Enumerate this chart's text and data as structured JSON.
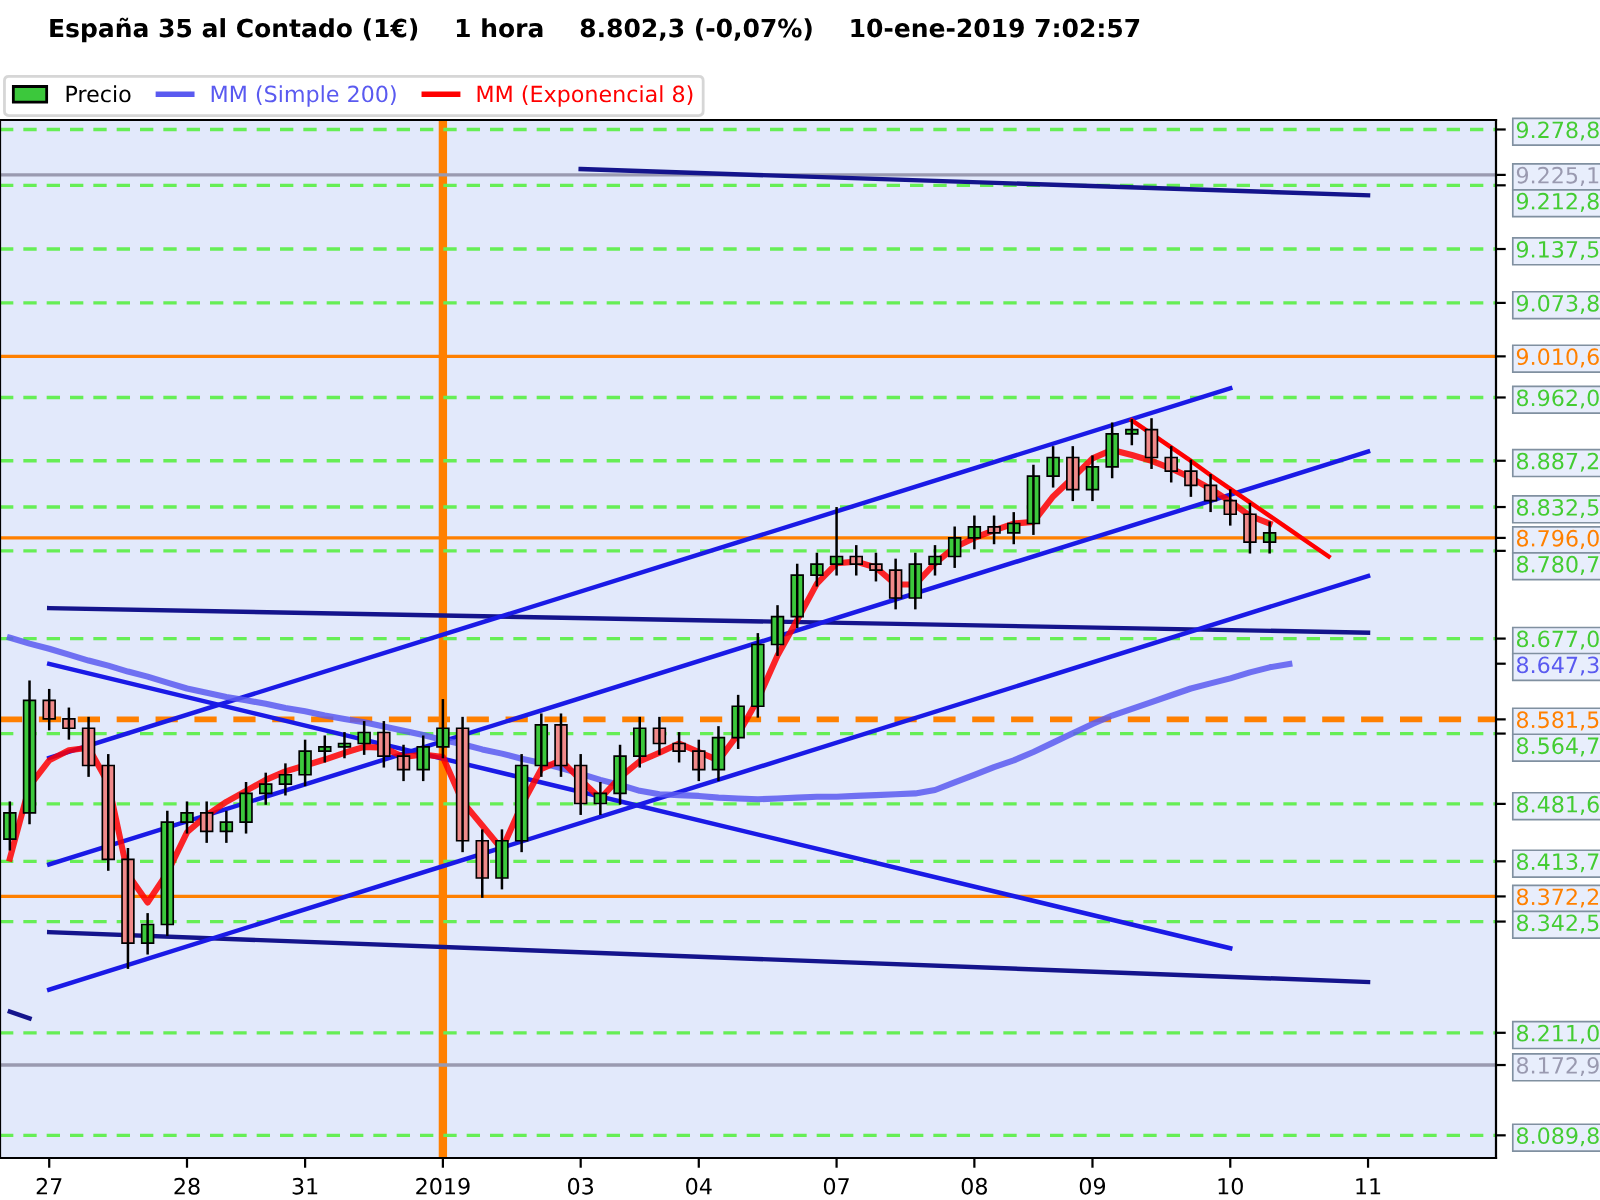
{
  "chart_data": {
    "type": "candlestick",
    "title": "España 35 al Contado (1€)    1 hora    8.802,3 (-0,07%)    10-ene-2019 7:02:57",
    "categories": [
      null,
      null,
      "27",
      null,
      null,
      null,
      null,
      null,
      null,
      "28",
      null,
      null,
      null,
      null,
      null,
      "31",
      null,
      null,
      null,
      null,
      null,
      null,
      "2019",
      null,
      null,
      null,
      null,
      null,
      null,
      "03",
      null,
      null,
      null,
      null,
      null,
      "04",
      null,
      null,
      null,
      null,
      null,
      null,
      "07",
      null,
      null,
      null,
      null,
      null,
      null,
      "08",
      null,
      null,
      null,
      null,
      null,
      "09",
      null,
      null,
      null,
      null,
      null,
      null,
      "10",
      null,
      null,
      null,
      null,
      null,
      null,
      "11",
      null,
      null,
      null,
      null,
      null,
      null
    ],
    "ylim": [
      8063,
      9290
    ],
    "yticks": [
      {
        "value": 9278.8,
        "label": "9.278,8"
      },
      {
        "value": 9225.1,
        "label": "9.225,1"
      },
      {
        "value": 9212.8,
        "label": "9.212,8"
      },
      {
        "value": 9137.5,
        "label": "9.137,5"
      },
      {
        "value": 9073.8,
        "label": "9.073,8"
      },
      {
        "value": 9010.6,
        "label": "9.010,6"
      },
      {
        "value": 8962.0,
        "label": "8.962,0"
      },
      {
        "value": 8887.2,
        "label": "8.887,2"
      },
      {
        "value": 8832.5,
        "label": "8.832,5"
      },
      {
        "value": 8796.0,
        "label": "8.796,0"
      },
      {
        "value": 8780.7,
        "label": "8.780,7"
      },
      {
        "value": 8677.0,
        "label": "8.677,0"
      },
      {
        "value": 8647.3,
        "label": "8.647,3"
      },
      {
        "value": 8581.5,
        "label": "8.581,5"
      },
      {
        "value": 8564.7,
        "label": "8.564,7"
      },
      {
        "value": 8481.6,
        "label": "8.481,6"
      },
      {
        "value": 8413.7,
        "label": "8.413,7"
      },
      {
        "value": 8372.2,
        "label": "8.372,2"
      },
      {
        "value": 8342.5,
        "label": "8.342,5"
      },
      {
        "value": 8211.0,
        "label": "8.211,0"
      },
      {
        "value": 8172.9,
        "label": "8.172,9"
      },
      {
        "value": 8089.8,
        "label": "8.089,8"
      }
    ],
    "grid": false,
    "legend": "top left",
    "series": [
      {
        "name": "Precio",
        "color": "#000000",
        "colors": [
          "#3cc83c",
          "#3cc83c",
          "#f08a8a",
          "#f08a8a",
          "#f08a8a",
          "#f08a8a",
          "#f08a8a",
          "#3cc83c",
          "#3cc83c",
          "#3cc83c",
          "#f08a8a",
          "#3cc83c",
          "#3cc83c",
          "#3cc83c",
          "#3cc83c",
          "#3cc83c",
          "#3cc83c",
          "#3cc83c",
          "#3cc83c",
          "#f08a8a",
          "#f08a8a",
          "#3cc83c",
          "#3cc83c",
          "#f08a8a",
          "#f08a8a",
          "#3cc83c",
          "#3cc83c",
          "#3cc83c",
          "#f08a8a",
          "#f08a8a",
          "#3cc83c",
          "#3cc83c",
          "#3cc83c",
          "#f08a8a",
          "#f08a8a",
          "#f08a8a",
          "#3cc83c",
          "#3cc83c",
          "#3cc83c",
          "#3cc83c",
          "#3cc83c",
          "#3cc83c",
          "#3cc83c",
          "#f08a8a",
          "#f08a8a",
          "#f08a8a",
          "#3cc83c",
          "#3cc83c",
          "#3cc83c",
          "#3cc83c",
          "#f08a8a",
          "#3cc83c",
          "#3cc83c",
          "#3cc83c",
          "#f08a8a",
          "#3cc83c",
          "#3cc83c",
          "#3cc83c",
          "#f08a8a",
          "#f08a8a",
          "#f08a8a",
          "#f08a8a",
          "#f08a8a",
          "#f08a8a",
          "#3cc83c",
          null,
          null,
          null,
          null,
          null,
          null,
          null,
          null,
          null,
          null,
          null
        ],
        "ohlc": [
          [
            8440,
            8483,
            8428,
            8471
          ],
          [
            8471,
            8626,
            8459,
            8604
          ],
          [
            8604,
            8616,
            8570,
            8582
          ],
          [
            8582,
            8594,
            8559,
            8571
          ],
          [
            8571,
            8583,
            8515,
            8527
          ],
          [
            8527,
            8539,
            8404,
            8416
          ],
          [
            8416,
            8428,
            8288,
            8317
          ],
          [
            8317,
            8351,
            8305,
            8339
          ],
          [
            8339,
            8472,
            8327,
            8460
          ],
          [
            8460,
            8483,
            8448,
            8471
          ],
          [
            8471,
            8483,
            8437,
            8449
          ],
          [
            8449,
            8472,
            8437,
            8460
          ],
          [
            8460,
            8506,
            8448,
            8494
          ],
          [
            8494,
            8517,
            8482,
            8505
          ],
          [
            8505,
            8528,
            8493,
            8516
          ],
          [
            8516,
            8556,
            8504,
            8544
          ],
          [
            8544,
            8561,
            8532,
            8549
          ],
          [
            8549,
            8565,
            8537,
            8553
          ],
          [
            8553,
            8578,
            8541,
            8566
          ],
          [
            8566,
            8578,
            8526,
            8538
          ],
          [
            8538,
            8550,
            8510,
            8522
          ],
          [
            8522,
            8561,
            8510,
            8549
          ],
          [
            8549,
            8604,
            8537,
            8571
          ],
          [
            8571,
            8583,
            8426,
            8438
          ],
          [
            8438,
            8450,
            8372,
            8394
          ],
          [
            8394,
            8450,
            8382,
            8438
          ],
          [
            8438,
            8539,
            8426,
            8527
          ],
          [
            8527,
            8587,
            8515,
            8575
          ],
          [
            8575,
            8587,
            8515,
            8527
          ],
          [
            8527,
            8539,
            8470,
            8482
          ],
          [
            8482,
            8506,
            8470,
            8494
          ],
          [
            8494,
            8550,
            8482,
            8538
          ],
          [
            8538,
            8583,
            8526,
            8571
          ],
          [
            8571,
            8583,
            8541,
            8553
          ],
          [
            8553,
            8565,
            8532,
            8544
          ],
          [
            8544,
            8556,
            8510,
            8522
          ],
          [
            8522,
            8572,
            8510,
            8560
          ],
          [
            8560,
            8609,
            8548,
            8597
          ],
          [
            8597,
            8682,
            8585,
            8670
          ],
          [
            8670,
            8715,
            8658,
            8703
          ],
          [
            8703,
            8764,
            8691,
            8752
          ],
          [
            8752,
            8777,
            8740,
            8765
          ],
          [
            8765,
            8831,
            8753,
            8774
          ],
          [
            8774,
            8786,
            8753,
            8765
          ],
          [
            8765,
            8777,
            8746,
            8758
          ],
          [
            8758,
            8770,
            8713,
            8725
          ],
          [
            8725,
            8777,
            8713,
            8765
          ],
          [
            8765,
            8786,
            8753,
            8774
          ],
          [
            8774,
            8808,
            8762,
            8796
          ],
          [
            8796,
            8821,
            8784,
            8809
          ],
          [
            8809,
            8821,
            8790,
            8802
          ],
          [
            8802,
            8825,
            8790,
            8813
          ],
          [
            8813,
            8881,
            8801,
            8869
          ],
          [
            8869,
            8903,
            8857,
            8891
          ],
          [
            8891,
            8903,
            8841,
            8853
          ],
          [
            8853,
            8892,
            8841,
            8880
          ],
          [
            8880,
            8931,
            8868,
            8919
          ],
          [
            8919,
            8935,
            8907,
            8924
          ],
          [
            8924,
            8936,
            8879,
            8891
          ],
          [
            8891,
            8903,
            8863,
            8875
          ],
          [
            8875,
            8887,
            8846,
            8858
          ],
          [
            8858,
            8870,
            8828,
            8840
          ],
          [
            8840,
            8852,
            8812,
            8824
          ],
          [
            8824,
            8836,
            8779,
            8791
          ],
          [
            8791,
            8814,
            8779,
            8802
          ],
          null,
          null,
          null,
          null,
          null,
          null,
          null,
          null,
          null,
          null,
          null
        ]
      },
      {
        "type": "line",
        "name": "MM (Simple 200)",
        "color": "#5a5af0",
        "values": [
          8678,
          8671,
          8665,
          8658,
          8651,
          8645,
          8638,
          8632,
          8625,
          8618,
          8613,
          8608,
          8604,
          8600,
          8595,
          8591,
          8586,
          8582,
          8578,
          8573,
          8568,
          8563,
          8557,
          8552,
          8546,
          8541,
          8535,
          8530,
          8524,
          8517,
          8510,
          8504,
          8497,
          8493,
          8492,
          8491,
          8489,
          8488,
          8487,
          8488,
          8489,
          8490,
          8490,
          8491,
          8492,
          8493,
          8494,
          8498,
          8507,
          8516,
          8525,
          8533,
          8543,
          8554,
          8565,
          8576,
          8586,
          8594,
          8602,
          8610,
          8618,
          8624,
          8630,
          8637,
          8643,
          8647,
          null,
          null,
          null,
          null,
          null,
          null,
          null,
          null,
          null,
          null
        ]
      },
      {
        "type": "line",
        "name": "MM (Exponencial 8)",
        "color": "#ff0000",
        "values": [
          8417,
          8503,
          8533,
          8545,
          8548,
          8506,
          8398,
          8365,
          8400,
          8448,
          8468,
          8484,
          8497,
          8510,
          8520,
          8527,
          8534,
          8542,
          8549,
          8548,
          8537,
          8540,
          8537,
          8484,
          8456,
          8428,
          8480,
          8523,
          8533,
          8510,
          8488,
          8513,
          8532,
          8542,
          8553,
          8543,
          8533,
          8564,
          8605,
          8657,
          8699,
          8742,
          8766,
          8768,
          8761,
          8741,
          8741,
          8766,
          8785,
          8796,
          8805,
          8813,
          8815,
          8845,
          8867,
          8890,
          8900,
          8894,
          8887,
          8878,
          8867,
          8854,
          8839,
          8822,
          8813,
          null,
          null,
          null,
          null,
          null,
          null,
          null,
          null,
          null,
          null,
          null
        ]
      },
      {
        "type": "line",
        "color": "#14148c",
        "x": [
          "03",
          "11"
        ],
        "values": [
          9232,
          9201
        ]
      },
      {
        "type": "line",
        "color": "#14148c",
        "x": [
          "27",
          "11"
        ],
        "values": [
          8713,
          8684
        ]
      },
      {
        "type": "line",
        "color": "#14148c",
        "x": [
          "27",
          "11"
        ],
        "values": [
          8330,
          8271
        ]
      },
      {
        "type": "line",
        "color": "#14148c",
        "values": [
          8236,
          8228,
          null,
          null,
          null,
          null,
          null,
          null,
          null,
          null,
          null,
          null,
          null,
          null,
          null,
          null,
          null,
          null,
          null,
          null,
          null,
          null,
          null,
          null,
          null,
          null,
          null,
          null,
          null,
          null,
          null,
          null,
          null,
          null,
          null,
          null,
          null,
          null,
          null,
          null,
          null,
          null,
          null,
          null,
          null,
          null,
          null,
          null,
          null,
          null,
          null,
          null,
          null,
          null,
          null,
          null,
          null,
          null,
          null,
          null,
          null,
          null,
          null,
          null,
          null,
          null,
          null,
          null,
          null,
          null,
          null,
          null,
          null,
          null,
          null,
          null
        ]
      },
      {
        "type": "line",
        "color": "#1a1ae6",
        "x": [
          "27",
          "10"
        ],
        "values": [
          8536,
          8973
        ]
      },
      {
        "type": "line",
        "color": "#1a1ae6",
        "x": [
          "27",
          "11"
        ],
        "values": [
          8410,
          8898
        ]
      },
      {
        "type": "line",
        "color": "#1a1ae6",
        "x": [
          "27",
          "11"
        ],
        "values": [
          8262,
          8751
        ]
      },
      {
        "type": "line",
        "color": "#1a1ae6",
        "x": [
          "27",
          "10"
        ],
        "values": [
          8647,
          8311
        ]
      },
      {
        "type": "line",
        "color": "#ff0000",
        "values": [
          null,
          null,
          null,
          null,
          null,
          null,
          null,
          null,
          null,
          null,
          null,
          null,
          null,
          null,
          null,
          null,
          null,
          null,
          null,
          null,
          null,
          null,
          null,
          null,
          null,
          null,
          null,
          null,
          null,
          null,
          null,
          null,
          null,
          null,
          null,
          null,
          null,
          null,
          null,
          null,
          null,
          null,
          null,
          null,
          null,
          null,
          null,
          null,
          null,
          null,
          null,
          null,
          null,
          null,
          null,
          null,
          null,
          8935,
          8919,
          8903,
          8887,
          8870,
          8854,
          8838,
          8822,
          8806,
          8790,
          8774,
          null,
          null,
          null,
          null,
          null,
          null,
          null,
          null
        ]
      }
    ],
    "ref_lines": [
      {
        "axis": "x",
        "value": "2019",
        "color": "#ff8000",
        "line_style": "solid"
      },
      {
        "axis": "y",
        "value": 9278.8,
        "color": "#66ee55",
        "line_style": "dashed"
      },
      {
        "axis": "y",
        "value": 9225.1,
        "color": "#9a9ab0",
        "line_style": "solid"
      },
      {
        "axis": "y",
        "value": 9212.8,
        "color": "#66ee55",
        "line_style": "dashed"
      },
      {
        "axis": "y",
        "value": 9137.5,
        "color": "#66ee55",
        "line_style": "dashed"
      },
      {
        "axis": "y",
        "value": 9073.8,
        "color": "#66ee55",
        "line_style": "dashed"
      },
      {
        "axis": "y",
        "value": 9010.6,
        "color": "#ff8000",
        "line_style": "solid"
      },
      {
        "axis": "y",
        "value": 8962.0,
        "color": "#66ee55",
        "line_style": "dashed"
      },
      {
        "axis": "y",
        "value": 8887.2,
        "color": "#66ee55",
        "line_style": "dashed"
      },
      {
        "axis": "y",
        "value": 8832.5,
        "color": "#66ee55",
        "line_style": "dashed"
      },
      {
        "axis": "y",
        "value": 8796.0,
        "color": "#ff8000",
        "line_style": "solid"
      },
      {
        "axis": "y",
        "value": 8780.7,
        "color": "#66ee55",
        "line_style": "dashed"
      },
      {
        "axis": "y",
        "value": 8677.0,
        "color": "#66ee55",
        "line_style": "dashed"
      },
      {
        "axis": "y",
        "value": 8581.5,
        "color": "#ff8000",
        "line_style": "dashed"
      },
      {
        "axis": "y",
        "value": 8564.7,
        "color": "#66ee55",
        "line_style": "dashed"
      },
      {
        "axis": "y",
        "value": 8481.6,
        "color": "#66ee55",
        "line_style": "dashed"
      },
      {
        "axis": "y",
        "value": 8413.7,
        "color": "#66ee55",
        "line_style": "dashed"
      },
      {
        "axis": "y",
        "value": 8372.2,
        "color": "#ff8000",
        "line_style": "solid"
      },
      {
        "axis": "y",
        "value": 8342.5,
        "color": "#66ee55",
        "line_style": "dashed"
      },
      {
        "axis": "y",
        "value": 8211.0,
        "color": "#66ee55",
        "line_style": "dashed"
      },
      {
        "axis": "y",
        "value": 8172.9,
        "color": "#9a9ab0",
        "line_style": "solid"
      },
      {
        "axis": "y",
        "value": 8089.8,
        "color": "#66ee55",
        "line_style": "dashed"
      }
    ]
  }
}
